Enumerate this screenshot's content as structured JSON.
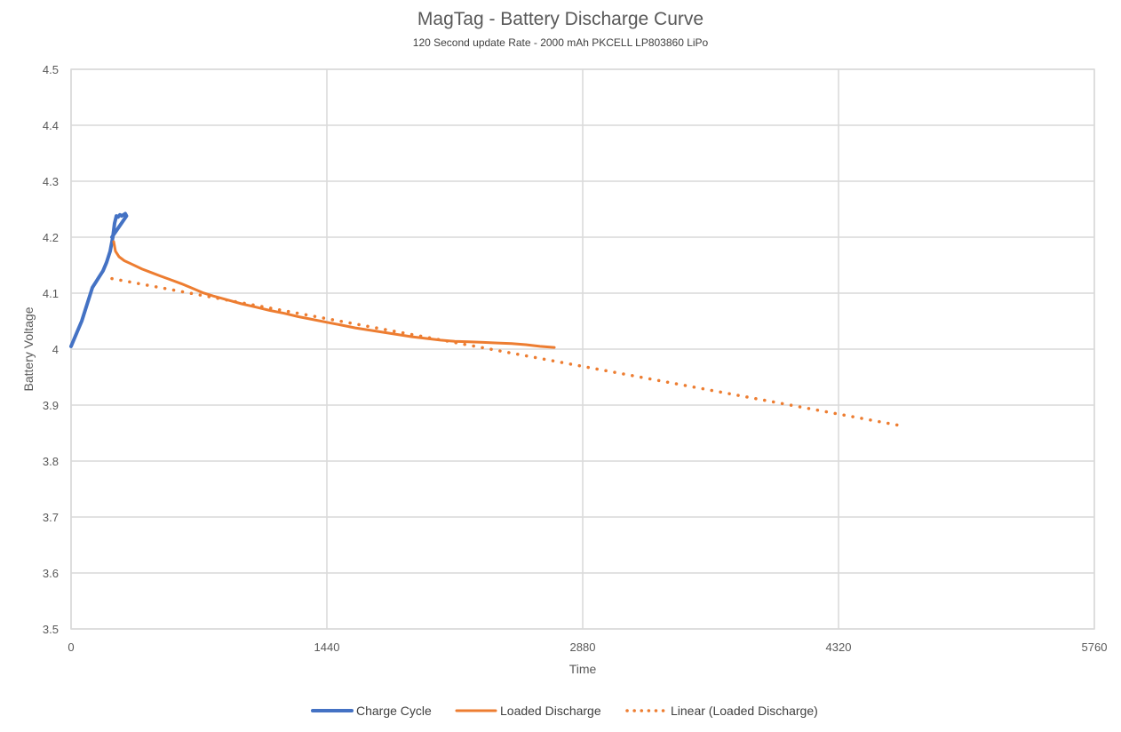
{
  "chart_data": {
    "type": "line",
    "title": "MagTag - Battery Discharge Curve",
    "subtitle": "120 Second update Rate - 2000 mAh PKCELL LP803860 LiPo",
    "xlabel": "Time",
    "ylabel": "Battery Voltage",
    "xlim": [
      0,
      5760
    ],
    "ylim": [
      3.5,
      4.5
    ],
    "x_ticks": [
      0,
      1440,
      2880,
      4320,
      5760
    ],
    "x_tick_labels": [
      "0",
      "1440",
      "2880",
      "4320",
      "5760"
    ],
    "y_ticks": [
      3.5,
      3.6,
      3.7,
      3.8,
      3.9,
      4.0,
      4.1,
      4.2,
      4.3,
      4.4,
      4.5
    ],
    "y_tick_labels": [
      "3.5",
      "3.6",
      "3.7",
      "3.8",
      "3.9",
      "4",
      "4.1",
      "4.2",
      "4.3",
      "4.4",
      "4.5"
    ],
    "grid": true,
    "legend_position": "bottom",
    "series": [
      {
        "name": "Charge Cycle",
        "color": "#4472C4",
        "style": "solid-thick",
        "points": [
          [
            0,
            4.005
          ],
          [
            20,
            4.02
          ],
          [
            40,
            4.035
          ],
          [
            60,
            4.05
          ],
          [
            80,
            4.07
          ],
          [
            100,
            4.09
          ],
          [
            120,
            4.11
          ],
          [
            140,
            4.12
          ],
          [
            160,
            4.13
          ],
          [
            180,
            4.14
          ],
          [
            200,
            4.155
          ],
          [
            220,
            4.175
          ],
          [
            235,
            4.2
          ],
          [
            245,
            4.225
          ],
          [
            255,
            4.238
          ],
          [
            265,
            4.236
          ],
          [
            275,
            4.24
          ],
          [
            285,
            4.238
          ],
          [
            295,
            4.24
          ],
          [
            305,
            4.242
          ],
          [
            312,
            4.238
          ],
          [
            230,
            4.2
          ]
        ]
      },
      {
        "name": "Loaded Discharge",
        "color": "#ED7D31",
        "style": "solid",
        "points": [
          [
            240,
            4.192
          ],
          [
            250,
            4.175
          ],
          [
            270,
            4.165
          ],
          [
            300,
            4.158
          ],
          [
            340,
            4.152
          ],
          [
            400,
            4.143
          ],
          [
            450,
            4.137
          ],
          [
            500,
            4.131
          ],
          [
            560,
            4.124
          ],
          [
            620,
            4.117
          ],
          [
            680,
            4.109
          ],
          [
            740,
            4.101
          ],
          [
            800,
            4.095
          ],
          [
            880,
            4.088
          ],
          [
            960,
            4.081
          ],
          [
            1040,
            4.075
          ],
          [
            1120,
            4.069
          ],
          [
            1200,
            4.064
          ],
          [
            1280,
            4.058
          ],
          [
            1360,
            4.053
          ],
          [
            1440,
            4.048
          ],
          [
            1520,
            4.043
          ],
          [
            1600,
            4.038
          ],
          [
            1680,
            4.034
          ],
          [
            1760,
            4.03
          ],
          [
            1840,
            4.026
          ],
          [
            1920,
            4.022
          ],
          [
            2000,
            4.019
          ],
          [
            2080,
            4.016
          ],
          [
            2160,
            4.014
          ],
          [
            2240,
            4.013
          ],
          [
            2320,
            4.012
          ],
          [
            2400,
            4.011
          ],
          [
            2480,
            4.01
          ],
          [
            2560,
            4.008
          ],
          [
            2640,
            4.005
          ],
          [
            2720,
            4.003
          ]
        ]
      },
      {
        "name": "Linear (Loaded Discharge)",
        "color": "#ED7D31",
        "style": "dotted",
        "points": [
          [
            230,
            4.126
          ],
          [
            4690,
            3.862
          ]
        ]
      }
    ]
  }
}
